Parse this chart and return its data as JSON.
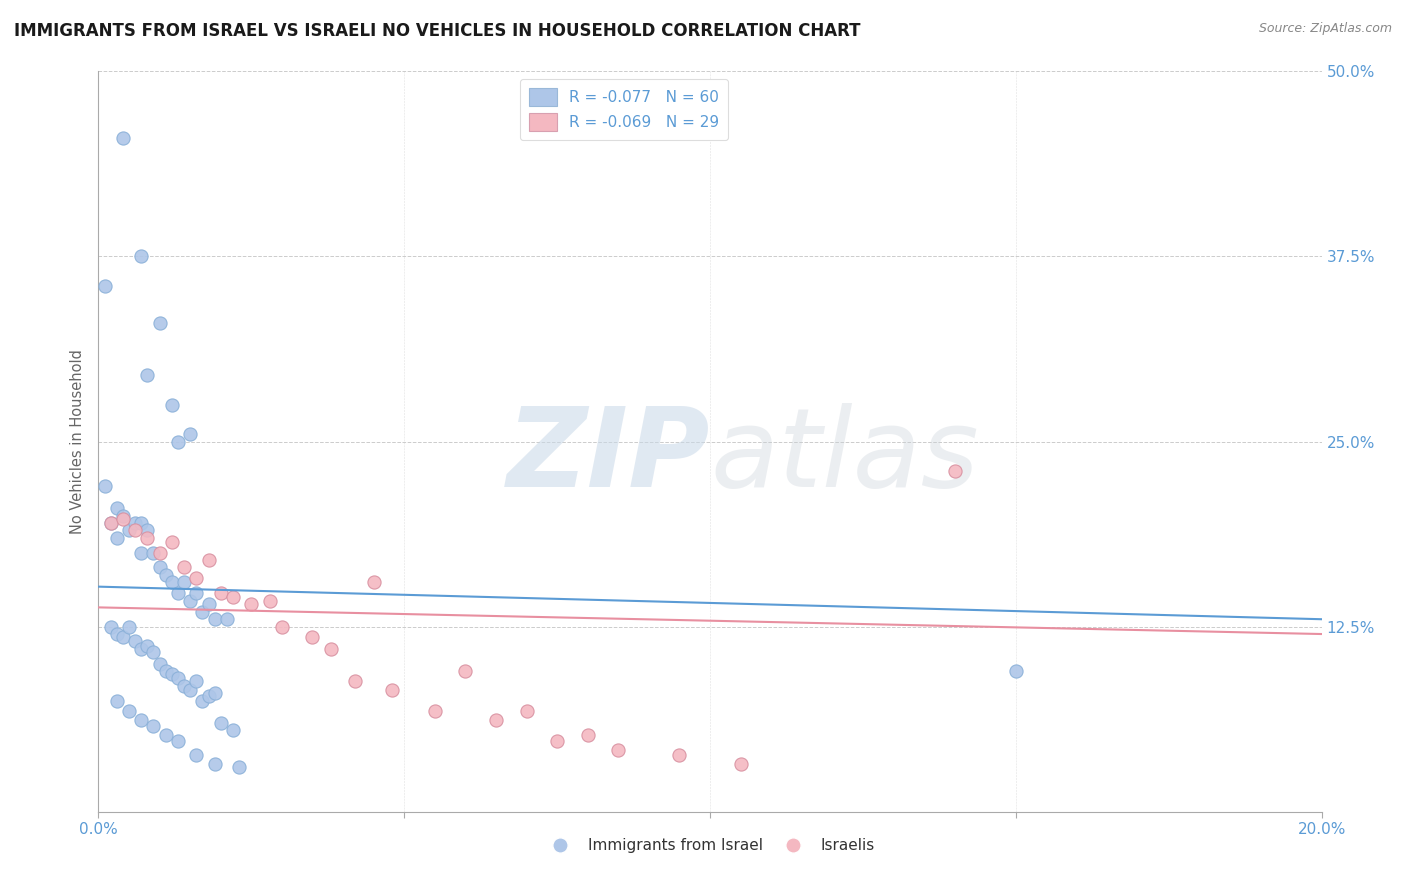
{
  "title": "IMMIGRANTS FROM ISRAEL VS ISRAELI NO VEHICLES IN HOUSEHOLD CORRELATION CHART",
  "source": "Source: ZipAtlas.com",
  "ylabel": "No Vehicles in Household",
  "xlim": [
    0.0,
    0.2
  ],
  "ylim": [
    0.0,
    0.5
  ],
  "legend_entries": [
    {
      "label": "R = -0.077   N = 60",
      "color": "#aec6e8"
    },
    {
      "label": "R = -0.069   N = 29",
      "color": "#f4b8c1"
    }
  ],
  "legend_labels_bottom": [
    "Immigrants from Israel",
    "Israelis"
  ],
  "blue_scatter_x": [
    0.001,
    0.004,
    0.007,
    0.008,
    0.01,
    0.012,
    0.013,
    0.015,
    0.001,
    0.002,
    0.003,
    0.003,
    0.004,
    0.005,
    0.006,
    0.007,
    0.007,
    0.008,
    0.009,
    0.01,
    0.011,
    0.012,
    0.013,
    0.014,
    0.015,
    0.016,
    0.017,
    0.018,
    0.019,
    0.021,
    0.002,
    0.003,
    0.004,
    0.005,
    0.006,
    0.007,
    0.008,
    0.009,
    0.01,
    0.011,
    0.012,
    0.013,
    0.014,
    0.015,
    0.016,
    0.017,
    0.018,
    0.019,
    0.02,
    0.022,
    0.003,
    0.005,
    0.007,
    0.009,
    0.011,
    0.013,
    0.016,
    0.019,
    0.023,
    0.15
  ],
  "blue_scatter_y": [
    0.355,
    0.455,
    0.375,
    0.295,
    0.33,
    0.275,
    0.25,
    0.255,
    0.22,
    0.195,
    0.205,
    0.185,
    0.2,
    0.19,
    0.195,
    0.195,
    0.175,
    0.19,
    0.175,
    0.165,
    0.16,
    0.155,
    0.148,
    0.155,
    0.142,
    0.148,
    0.135,
    0.14,
    0.13,
    0.13,
    0.125,
    0.12,
    0.118,
    0.125,
    0.115,
    0.11,
    0.112,
    0.108,
    0.1,
    0.095,
    0.093,
    0.09,
    0.085,
    0.082,
    0.088,
    0.075,
    0.078,
    0.08,
    0.06,
    0.055,
    0.075,
    0.068,
    0.062,
    0.058,
    0.052,
    0.048,
    0.038,
    0.032,
    0.03,
    0.095
  ],
  "pink_scatter_x": [
    0.002,
    0.004,
    0.006,
    0.008,
    0.01,
    0.012,
    0.014,
    0.016,
    0.018,
    0.02,
    0.022,
    0.025,
    0.028,
    0.03,
    0.035,
    0.038,
    0.042,
    0.048,
    0.055,
    0.065,
    0.075,
    0.085,
    0.095,
    0.105,
    0.06,
    0.07,
    0.08,
    0.14,
    0.045
  ],
  "pink_scatter_y": [
    0.195,
    0.198,
    0.19,
    0.185,
    0.175,
    0.182,
    0.165,
    0.158,
    0.17,
    0.148,
    0.145,
    0.14,
    0.142,
    0.125,
    0.118,
    0.11,
    0.088,
    0.082,
    0.068,
    0.062,
    0.048,
    0.042,
    0.038,
    0.032,
    0.095,
    0.068,
    0.052,
    0.23,
    0.155
  ],
  "blue_line_x": [
    0.0,
    0.2
  ],
  "blue_line_y": [
    0.152,
    0.13
  ],
  "pink_line_x": [
    0.0,
    0.2
  ],
  "pink_line_y": [
    0.138,
    0.12
  ],
  "watermark_zip": "ZIP",
  "watermark_atlas": "atlas",
  "title_color": "#1a1a1a",
  "title_fontsize": 12,
  "axis_color": "#5b9bd5",
  "scatter_blue_color": "#aec6e8",
  "scatter_pink_color": "#f4b8c1",
  "line_blue_color": "#5b9bd5",
  "line_pink_color": "#e88fa0",
  "grid_color": "#cccccc",
  "background_color": "#ffffff"
}
